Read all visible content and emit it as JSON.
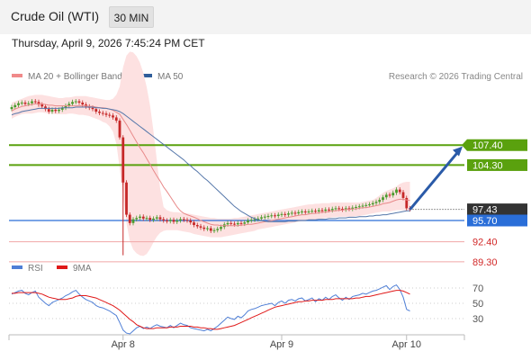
{
  "header": {
    "title": "Crude Oil (WTI)",
    "timeframe": "30 MIN"
  },
  "datetime": "Thursday, April 9, 2026 7:45:24 PM CET",
  "legend": {
    "items": [
      {
        "label": "MA 20 + Bollinger Bands",
        "color": "#f08a8a"
      },
      {
        "label": "MA 50",
        "color": "#2f5d9a"
      }
    ],
    "credit": "Research © 2026 Trading Central"
  },
  "rsi_legend": {
    "items": [
      {
        "label": "RSI",
        "color": "#4f7fd6"
      },
      {
        "label": "9MA",
        "color": "#e01818"
      }
    ]
  },
  "colors": {
    "resistance": "#5aa10e",
    "pivot": "#2a6ed8",
    "support": "#f1a6a6",
    "support_text": "#d22828",
    "candle_up": "#4a9b2d",
    "candle_down": "#c62828",
    "band_fill": "#fde1e1",
    "ma20": "#e88a8a",
    "ma50": "#5577aa",
    "rsi": "#4f7fd6",
    "rsi_ma": "#e01818"
  },
  "chart_data": [
    {
      "type": "candlestick",
      "title": "Crude Oil (WTI)",
      "ylim": [
        85,
        122
      ],
      "x_ticks": [
        "Apr 8",
        "Apr 9",
        "Apr 10"
      ],
      "x_tick_index": [
        33,
        80,
        117
      ],
      "levels": [
        {
          "value": 107.4,
          "label": "107.40",
          "kind": "resistance"
        },
        {
          "value": 104.3,
          "label": "104.30",
          "kind": "resistance"
        },
        {
          "value": 97.43,
          "label": "97.43",
          "kind": "last"
        },
        {
          "value": 95.7,
          "label": "95.70",
          "kind": "pivot"
        },
        {
          "value": 92.4,
          "label": "92.40",
          "kind": "support"
        },
        {
          "value": 89.3,
          "label": "89.30",
          "kind": "support"
        }
      ],
      "arrow": {
        "from_index": 118,
        "from_value": 97.4,
        "to_index": 128,
        "to_value": 107.2
      },
      "close": [
        113.3,
        113.6,
        113.9,
        114.0,
        113.8,
        113.9,
        114.2,
        114.1,
        113.7,
        113.4,
        113.0,
        112.6,
        112.9,
        112.7,
        112.9,
        113.2,
        113.5,
        113.8,
        114.1,
        114.2,
        114.0,
        113.7,
        113.4,
        113.2,
        113.0,
        112.6,
        112.4,
        112.3,
        112.1,
        112.0,
        111.7,
        111.2,
        108.6,
        101.6,
        96.6,
        95.3,
        95.9,
        96.1,
        96.3,
        96.0,
        96.1,
        95.8,
        96.0,
        96.2,
        95.9,
        95.7,
        95.6,
        95.8,
        95.5,
        95.7,
        95.9,
        95.8,
        95.7,
        95.4,
        95.0,
        94.8,
        94.6,
        94.4,
        94.5,
        94.1,
        94.2,
        94.4,
        94.7,
        95.1,
        95.3,
        95.2,
        95.1,
        95.3,
        95.2,
        95.4,
        95.7,
        95.8,
        95.9,
        96.0,
        96.2,
        96.3,
        96.4,
        96.5,
        96.4,
        96.6,
        96.7,
        96.6,
        96.8,
        96.9,
        96.8,
        97.0,
        97.1,
        97.0,
        97.1,
        97.2,
        97.1,
        97.3,
        97.2,
        97.4,
        97.3,
        97.5,
        97.6,
        97.5,
        97.4,
        97.6,
        97.5,
        97.7,
        97.8,
        97.9,
        98.0,
        98.1,
        98.2,
        98.4,
        98.6,
        98.9,
        99.3,
        99.7,
        99.6,
        100.0,
        100.5,
        100.1,
        99.2,
        97.6,
        97.43
      ],
      "ma20": [
        112.7,
        113.0,
        113.2,
        113.4,
        113.5,
        113.6,
        113.7,
        113.8,
        113.8,
        113.8,
        113.7,
        113.6,
        113.6,
        113.5,
        113.5,
        113.5,
        113.5,
        113.5,
        113.5,
        113.5,
        113.5,
        113.5,
        113.5,
        113.4,
        113.4,
        113.3,
        113.2,
        113.2,
        113.1,
        113.0,
        112.8,
        112.5,
        112.2,
        111.4,
        110.6,
        109.7,
        108.8,
        107.9,
        107.0,
        106.2,
        105.3,
        104.4,
        103.5,
        102.6,
        101.8,
        100.9,
        100.2,
        99.4,
        98.6,
        97.8,
        97.2,
        96.8,
        96.6,
        96.4,
        96.2,
        96.0,
        95.7,
        95.5,
        95.3,
        95.1,
        95.0,
        95.0,
        94.9,
        94.9,
        94.9,
        94.9,
        94.9,
        94.9,
        95.0,
        95.0,
        95.1,
        95.1,
        95.2,
        95.3,
        95.4,
        95.5,
        95.6,
        95.7,
        95.8,
        95.9,
        96.0,
        96.1,
        96.2,
        96.3,
        96.4,
        96.5,
        96.6,
        96.6,
        96.7,
        96.8,
        96.8,
        96.9,
        97.0,
        97.0,
        97.1,
        97.2,
        97.2,
        97.3,
        97.3,
        97.4,
        97.4,
        97.5,
        97.5,
        97.6,
        97.7,
        97.7,
        97.8,
        97.9,
        98.0,
        98.1,
        98.3,
        98.4,
        98.5,
        98.7,
        98.9,
        99.0,
        99.0,
        98.9,
        98.8
      ],
      "ma50": [
        112.1,
        112.3,
        112.4,
        112.6,
        112.7,
        112.8,
        112.9,
        113.0,
        113.1,
        113.1,
        113.1,
        113.1,
        113.1,
        113.1,
        113.1,
        113.2,
        113.2,
        113.2,
        113.2,
        113.3,
        113.3,
        113.3,
        113.3,
        113.3,
        113.3,
        113.2,
        113.2,
        113.1,
        113.1,
        113.0,
        112.9,
        112.8,
        112.6,
        112.3,
        111.9,
        111.5,
        111.1,
        110.7,
        110.3,
        109.9,
        109.5,
        109.1,
        108.7,
        108.3,
        107.9,
        107.5,
        107.1,
        106.7,
        106.3,
        105.9,
        105.5,
        105.1,
        104.6,
        104.2,
        103.7,
        103.3,
        102.8,
        102.3,
        101.9,
        101.4,
        100.9,
        100.4,
        99.9,
        99.4,
        98.9,
        98.4,
        97.9,
        97.5,
        97.1,
        96.8,
        96.5,
        96.2,
        96.0,
        95.8,
        95.7,
        95.6,
        95.5,
        95.5,
        95.5,
        95.5,
        95.5,
        95.5,
        95.6,
        95.6,
        95.6,
        95.7,
        95.7,
        95.7,
        95.8,
        95.8,
        95.8,
        95.9,
        95.9,
        95.9,
        96.0,
        96.0,
        96.0,
        96.1,
        96.1,
        96.1,
        96.2,
        96.2,
        96.2,
        96.3,
        96.3,
        96.3,
        96.4,
        96.4,
        96.5,
        96.5,
        96.6,
        96.6,
        96.7,
        96.8,
        96.9,
        97.0,
        97.1,
        97.2,
        97.2
      ],
      "bb_upper": [
        114.0,
        114.2,
        114.4,
        114.6,
        114.8,
        115.0,
        115.1,
        115.2,
        115.2,
        115.2,
        115.1,
        115.0,
        114.9,
        114.8,
        114.7,
        114.7,
        114.8,
        114.8,
        114.9,
        115.0,
        115.0,
        115.0,
        115.0,
        114.9,
        114.8,
        114.7,
        114.6,
        114.5,
        114.4,
        114.4,
        114.6,
        115.2,
        116.5,
        119.5,
        121.3,
        121.9,
        121.8,
        121.2,
        120.2,
        118.6,
        116.4,
        113.5,
        109.6,
        105.0,
        100.6,
        97.8,
        97.3,
        97.1,
        97.0,
        97.0,
        96.9,
        96.9,
        96.8,
        96.7,
        96.6,
        96.5,
        96.4,
        96.3,
        96.2,
        96.1,
        96.1,
        96.0,
        96.0,
        96.0,
        96.0,
        96.0,
        96.1,
        96.1,
        96.2,
        96.3,
        96.4,
        96.5,
        96.6,
        96.7,
        96.8,
        96.9,
        97.0,
        97.1,
        97.2,
        97.3,
        97.4,
        97.5,
        97.6,
        97.7,
        97.8,
        97.9,
        98.0,
        98.1,
        98.2,
        98.2,
        98.3,
        98.3,
        98.4,
        98.4,
        98.4,
        98.5,
        98.5,
        98.5,
        98.5,
        98.5,
        98.5,
        98.5,
        98.5,
        98.5,
        98.6,
        98.7,
        98.8,
        98.9,
        99.2,
        99.6,
        100.0,
        100.3,
        100.5,
        100.7,
        101.0,
        101.4,
        101.6,
        101.7,
        101.7
      ],
      "bb_lower": [
        111.5,
        111.8,
        112.0,
        112.2,
        112.3,
        112.3,
        112.3,
        112.4,
        112.5,
        112.5,
        112.4,
        112.3,
        112.3,
        112.2,
        112.2,
        112.2,
        112.2,
        112.3,
        112.3,
        112.2,
        112.1,
        112.1,
        112.0,
        111.9,
        111.7,
        111.5,
        111.3,
        111.0,
        110.8,
        110.3,
        109.5,
        107.6,
        103.8,
        99.5,
        95.3,
        92.5,
        91.2,
        90.6,
        90.3,
        90.2,
        90.5,
        91.3,
        92.3,
        93.2,
        93.8,
        94.1,
        94.2,
        94.2,
        94.2,
        94.2,
        94.1,
        94.0,
        93.9,
        93.8,
        93.6,
        93.5,
        93.4,
        93.3,
        93.2,
        93.1,
        93.1,
        93.1,
        93.1,
        93.2,
        93.3,
        93.4,
        93.5,
        93.6,
        93.7,
        93.8,
        93.9,
        94.0,
        94.1,
        94.3,
        94.4,
        94.5,
        94.6,
        94.7,
        94.8,
        94.9,
        95.0,
        95.1,
        95.2,
        95.3,
        95.4,
        95.5,
        95.6,
        95.6,
        95.7,
        95.8,
        95.9,
        96.0,
        96.0,
        96.1,
        96.1,
        96.2,
        96.2,
        96.3,
        96.3,
        96.3,
        96.3,
        96.3,
        96.4,
        96.4,
        96.5,
        96.6,
        96.7,
        96.8,
        96.9,
        97.0,
        97.1,
        97.1,
        97.1,
        97.2,
        97.3,
        97.3,
        97.3,
        97.3,
        97.3
      ]
    },
    {
      "type": "line",
      "title": "RSI",
      "ylim": [
        0,
        100
      ],
      "y_ticks": [
        70,
        50,
        30
      ],
      "series": [
        {
          "name": "RSI",
          "values": [
            62,
            64,
            66,
            67,
            63,
            61,
            64,
            66,
            58,
            54,
            50,
            47,
            51,
            53,
            55,
            57,
            60,
            62,
            65,
            67,
            62,
            58,
            55,
            53,
            51,
            47,
            45,
            44,
            42,
            40,
            37,
            34,
            25,
            15,
            11,
            10,
            14,
            18,
            20,
            17,
            19,
            17,
            20,
            22,
            20,
            19,
            18,
            21,
            18,
            21,
            24,
            22,
            21,
            18,
            17,
            16,
            15,
            14,
            16,
            14,
            17,
            20,
            24,
            28,
            32,
            30,
            29,
            33,
            31,
            35,
            40,
            42,
            43,
            45,
            47,
            48,
            49,
            50,
            47,
            51,
            53,
            50,
            54,
            55,
            53,
            56,
            57,
            53,
            55,
            57,
            52,
            56,
            54,
            58,
            55,
            59,
            61,
            57,
            54,
            58,
            55,
            59,
            60,
            61,
            63,
            62,
            64,
            66,
            67,
            69,
            71,
            73,
            68,
            72,
            74,
            68,
            58,
            42,
            40
          ]
        },
        {
          "name": "9MA",
          "values": [
            63,
            63,
            64,
            64,
            64,
            64,
            64,
            64,
            63,
            62,
            60,
            58,
            57,
            56,
            55,
            55,
            55,
            56,
            57,
            59,
            60,
            60,
            60,
            59,
            58,
            57,
            55,
            53,
            51,
            49,
            47,
            44,
            41,
            37,
            33,
            29,
            26,
            22,
            20,
            18,
            17,
            17,
            17,
            18,
            18,
            18,
            18,
            19,
            19,
            19,
            20,
            20,
            20,
            20,
            19,
            19,
            18,
            18,
            17,
            17,
            16,
            16,
            17,
            18,
            19,
            20,
            21,
            23,
            25,
            27,
            29,
            31,
            33,
            35,
            37,
            39,
            41,
            43,
            45,
            46,
            47,
            48,
            49,
            50,
            51,
            52,
            52,
            53,
            53,
            54,
            54,
            54,
            54,
            55,
            55,
            55,
            56,
            56,
            56,
            56,
            56,
            56,
            57,
            57,
            58,
            59,
            59,
            60,
            61,
            62,
            63,
            64,
            65,
            66,
            67,
            67,
            66,
            64,
            62
          ]
        }
      ]
    }
  ]
}
